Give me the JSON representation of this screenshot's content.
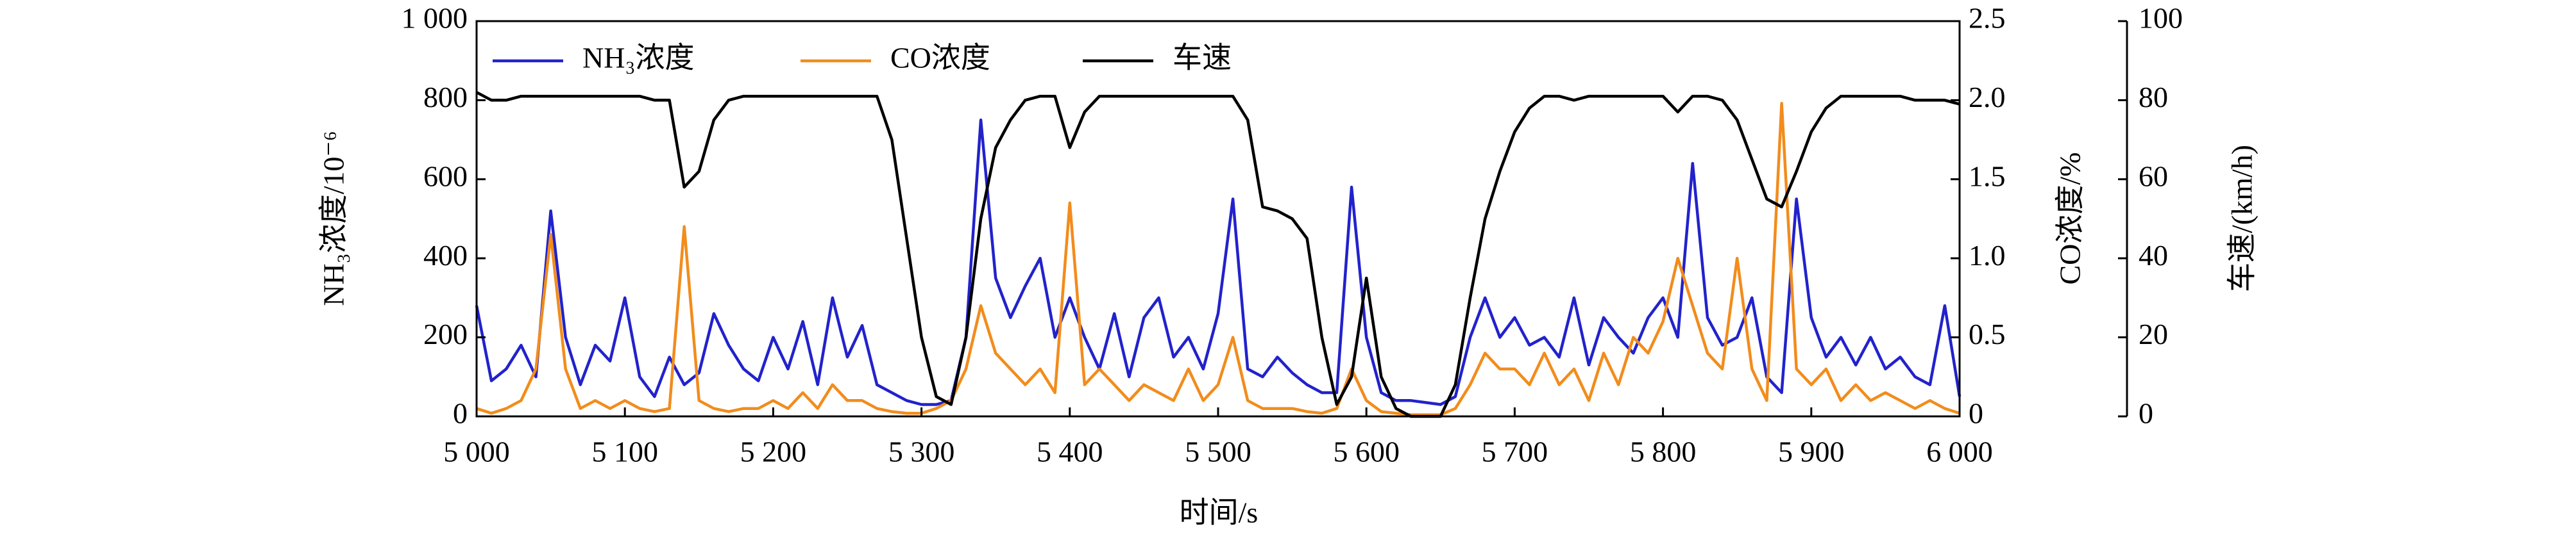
{
  "chart_data": {
    "type": "line",
    "x": [
      5000,
      5010,
      5020,
      5030,
      5040,
      5050,
      5060,
      5070,
      5080,
      5090,
      5100,
      5110,
      5120,
      5130,
      5140,
      5150,
      5160,
      5170,
      5180,
      5190,
      5200,
      5210,
      5220,
      5230,
      5240,
      5250,
      5260,
      5270,
      5280,
      5290,
      5300,
      5310,
      5320,
      5330,
      5340,
      5350,
      5360,
      5370,
      5380,
      5390,
      5400,
      5410,
      5420,
      5430,
      5440,
      5450,
      5460,
      5470,
      5480,
      5490,
      5500,
      5510,
      5520,
      5530,
      5540,
      5550,
      5560,
      5570,
      5580,
      5590,
      5600,
      5610,
      5620,
      5630,
      5640,
      5650,
      5660,
      5670,
      5680,
      5690,
      5700,
      5710,
      5720,
      5730,
      5740,
      5750,
      5760,
      5770,
      5780,
      5790,
      5800,
      5810,
      5820,
      5830,
      5840,
      5850,
      5860,
      5870,
      5880,
      5890,
      5900,
      5910,
      5920,
      5930,
      5940,
      5950,
      5960,
      5970,
      5980,
      5990,
      6000
    ],
    "series": [
      {
        "name": "NH₃浓度",
        "color": "#2222cc",
        "axis": "y",
        "values": [
          280,
          90,
          120,
          180,
          100,
          520,
          200,
          80,
          180,
          140,
          300,
          100,
          50,
          150,
          80,
          110,
          260,
          180,
          120,
          90,
          200,
          120,
          240,
          80,
          300,
          150,
          230,
          80,
          60,
          40,
          30,
          30,
          40,
          200,
          750,
          350,
          250,
          330,
          400,
          200,
          300,
          200,
          120,
          260,
          100,
          250,
          300,
          150,
          200,
          120,
          260,
          550,
          120,
          100,
          150,
          110,
          80,
          60,
          60,
          580,
          200,
          60,
          40,
          40,
          35,
          30,
          50,
          200,
          300,
          200,
          250,
          180,
          200,
          150,
          300,
          130,
          250,
          200,
          160,
          250,
          300,
          200,
          640,
          250,
          180,
          200,
          300,
          100,
          60,
          550,
          250,
          150,
          200,
          130,
          200,
          120,
          150,
          100,
          80,
          280,
          50
        ]
      },
      {
        "name": "CO浓度",
        "color": "#f28c1c",
        "axis": "y2",
        "values": [
          0.05,
          0.02,
          0.05,
          0.1,
          0.3,
          1.15,
          0.3,
          0.05,
          0.1,
          0.05,
          0.1,
          0.05,
          0.03,
          0.05,
          1.2,
          0.1,
          0.05,
          0.03,
          0.05,
          0.05,
          0.1,
          0.05,
          0.15,
          0.05,
          0.2,
          0.1,
          0.1,
          0.05,
          0.03,
          0.02,
          0.02,
          0.05,
          0.1,
          0.3,
          0.7,
          0.4,
          0.3,
          0.2,
          0.3,
          0.15,
          1.35,
          0.2,
          0.3,
          0.2,
          0.1,
          0.2,
          0.15,
          0.1,
          0.3,
          0.1,
          0.2,
          0.5,
          0.1,
          0.05,
          0.05,
          0.05,
          0.03,
          0.02,
          0.05,
          0.3,
          0.1,
          0.03,
          0.02,
          0.01,
          0.01,
          0.01,
          0.05,
          0.2,
          0.4,
          0.3,
          0.3,
          0.2,
          0.4,
          0.2,
          0.3,
          0.1,
          0.4,
          0.2,
          0.5,
          0.4,
          0.6,
          1.0,
          0.7,
          0.4,
          0.3,
          1.0,
          0.3,
          0.1,
          1.98,
          0.3,
          0.2,
          0.3,
          0.1,
          0.2,
          0.1,
          0.15,
          0.1,
          0.05,
          0.1,
          0.05,
          0.02
        ]
      },
      {
        "name": "车速",
        "color": "#000000",
        "axis": "y3",
        "values": [
          82,
          80,
          80,
          81,
          81,
          81,
          81,
          81,
          81,
          81,
          81,
          81,
          80,
          80,
          58,
          62,
          75,
          80,
          81,
          81,
          81,
          81,
          81,
          81,
          81,
          81,
          81,
          81,
          70,
          45,
          20,
          5,
          3,
          20,
          50,
          68,
          75,
          80,
          81,
          81,
          68,
          77,
          81,
          81,
          81,
          81,
          81,
          81,
          81,
          81,
          81,
          81,
          75,
          53,
          52,
          50,
          45,
          20,
          3,
          10,
          35,
          10,
          2,
          0,
          0,
          0,
          8,
          30,
          50,
          62,
          72,
          78,
          81,
          81,
          80,
          81,
          81,
          81,
          81,
          81,
          81,
          77,
          81,
          81,
          80,
          75,
          65,
          55,
          53,
          62,
          72,
          78,
          81,
          81,
          81,
          81,
          81,
          80,
          80,
          80,
          79
        ]
      }
    ],
    "xlabel": "时间/s",
    "ylabel": "NH₃浓度/10⁻⁶",
    "y2label": "CO浓度/%",
    "y3label": "车速/(km/h)",
    "xlim": [
      5000,
      6000
    ],
    "xticks": [
      {
        "value": 5000,
        "label": "5 000"
      },
      {
        "value": 5100,
        "label": "5 100"
      },
      {
        "value": 5200,
        "label": "5 200"
      },
      {
        "value": 5300,
        "label": "5 300"
      },
      {
        "value": 5400,
        "label": "5 400"
      },
      {
        "value": 5500,
        "label": "5 500"
      },
      {
        "value": 5600,
        "label": "5 600"
      },
      {
        "value": 5700,
        "label": "5 700"
      },
      {
        "value": 5800,
        "label": "5 800"
      },
      {
        "value": 5900,
        "label": "5 900"
      },
      {
        "value": 6000,
        "label": "6 000"
      }
    ],
    "ylim": [
      0,
      1000
    ],
    "yticks": [
      0,
      200,
      400,
      600,
      800,
      {
        "value": 1000,
        "label": "1 000"
      }
    ],
    "y2lim": [
      0,
      2.5
    ],
    "y2ticks": [
      0,
      0.5,
      {
        "value": 1,
        "label": "1.0"
      },
      1.5,
      {
        "value": 2,
        "label": "2.0"
      },
      2.5
    ],
    "y3lim": [
      0,
      100
    ],
    "y3ticks": [
      0,
      20,
      40,
      60,
      80,
      100
    ],
    "legend": "upper left",
    "grid": false
  }
}
